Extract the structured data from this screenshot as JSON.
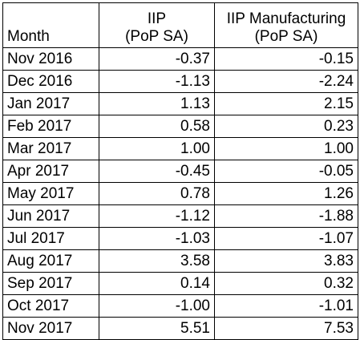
{
  "table": {
    "headers": [
      {
        "lines": [
          "Month"
        ]
      },
      {
        "lines": [
          "IIP",
          "(PoP SA)"
        ]
      },
      {
        "lines": [
          "IIP Manufacturing",
          "(PoP SA)"
        ]
      }
    ],
    "rows": [
      {
        "month": "Nov 2016",
        "iip": "-0.37",
        "iip_mfg": "-0.15"
      },
      {
        "month": "Dec 2016",
        "iip": "-1.13",
        "iip_mfg": "-2.24"
      },
      {
        "month": "Jan 2017",
        "iip": "1.13",
        "iip_mfg": "2.15"
      },
      {
        "month": "Feb 2017",
        "iip": "0.58",
        "iip_mfg": "0.23"
      },
      {
        "month": "Mar 2017",
        "iip": "1.00",
        "iip_mfg": "1.00"
      },
      {
        "month": "Apr 2017",
        "iip": "-0.45",
        "iip_mfg": "-0.05"
      },
      {
        "month": "May 2017",
        "iip": "0.78",
        "iip_mfg": "1.26"
      },
      {
        "month": "Jun 2017",
        "iip": "-1.12",
        "iip_mfg": "-1.88"
      },
      {
        "month": "Jul 2017",
        "iip": "-1.03",
        "iip_mfg": "-1.07"
      },
      {
        "month": "Aug 2017",
        "iip": "3.58",
        "iip_mfg": "3.83"
      },
      {
        "month": "Sep 2017",
        "iip": "0.14",
        "iip_mfg": "0.32"
      },
      {
        "month": "Oct 2017",
        "iip": "-1.00",
        "iip_mfg": "-1.01"
      },
      {
        "month": "Nov 2017",
        "iip": "5.51",
        "iip_mfg": "7.53"
      }
    ]
  }
}
